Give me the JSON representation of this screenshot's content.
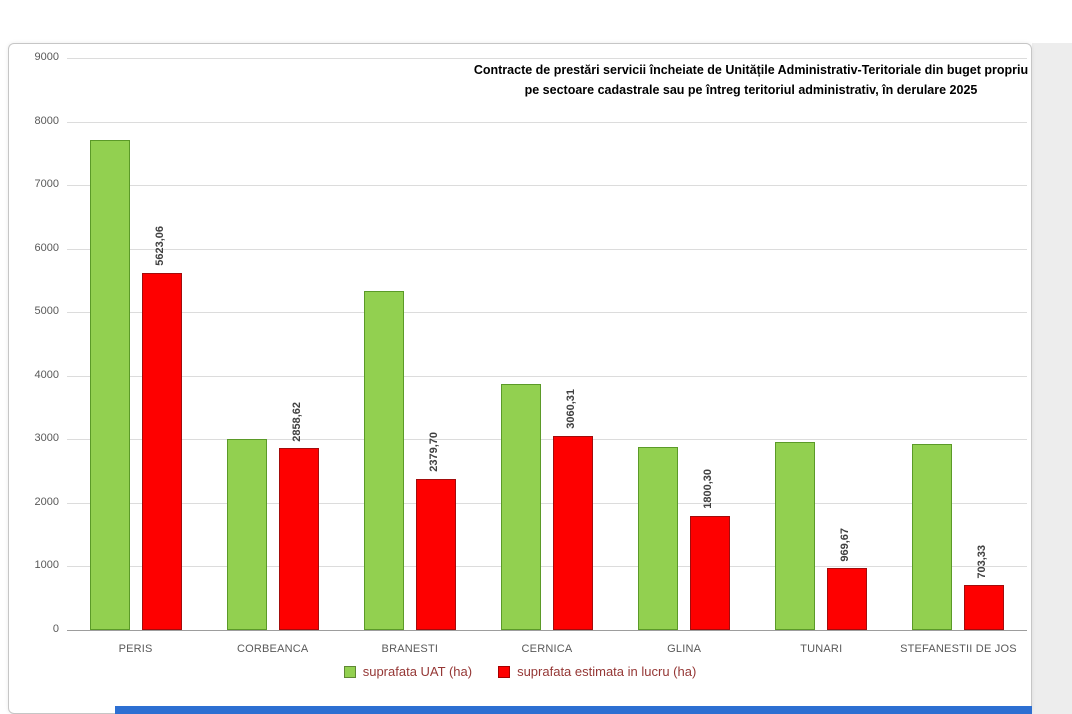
{
  "page": {
    "colors": {
      "panel_border": "#c6c6c6",
      "gutter": "#ededed",
      "bottom_bar": "#2d6fd2"
    }
  },
  "chart_data": {
    "type": "bar",
    "title": "Contracte de prestări servicii încheiate de Unitățile Administrativ-Teritoriale din buget propriu pe sectoare cadastrale sau pe întreg teritoriul administrativ, în derulare 2025",
    "categories": [
      "PERIS",
      "CORBEANCA",
      "BRANESTI",
      "CERNICA",
      "GLINA",
      "TUNARI",
      "STEFANESTII DE JOS"
    ],
    "series": [
      {
        "name": "suprafata UAT (ha)",
        "color": "#92D050",
        "border_color": "#5B9A28",
        "values": [
          7717,
          3000,
          5330,
          3875,
          2875,
          2960,
          2920
        ],
        "data_labels": [
          "",
          "",
          "",
          "",
          "",
          "",
          ""
        ]
      },
      {
        "name": "suprafata estimata in lucru (ha)",
        "color": "#FE0000",
        "border_color": "#A30C0C",
        "values": [
          5623.06,
          2858.62,
          2379.7,
          3060.31,
          1800.3,
          969.67,
          703.33
        ],
        "data_labels": [
          "5623,06",
          "2858,62",
          "2379,70",
          "3060,31",
          "1800,30",
          "969,67",
          "703,33"
        ]
      }
    ],
    "ylim": [
      0,
      9000
    ],
    "ytick_step": 1000,
    "yticks": [
      "0",
      "1000",
      "2000",
      "3000",
      "4000",
      "5000",
      "6000",
      "7000",
      "8000",
      "9000"
    ],
    "grid": true,
    "legend_position": "bottom",
    "data_label_rotation": "vertical"
  }
}
